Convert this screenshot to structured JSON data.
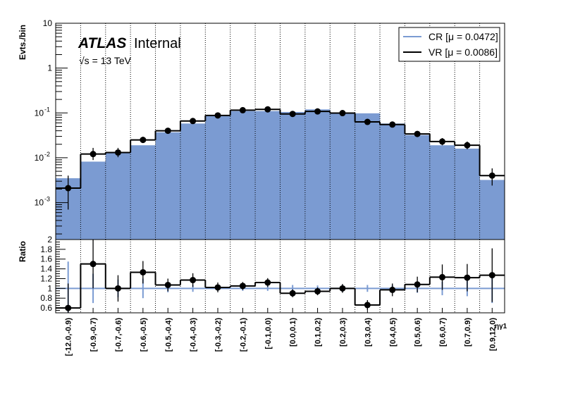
{
  "chart_data": [
    {
      "type": "bar",
      "panel": "main",
      "ylabel": "Evts./bin",
      "yscale": "log",
      "ylim": [
        0.00015,
        10
      ],
      "ytick_labels": [
        "10",
        "1",
        "10^-1",
        "10^-2",
        "10^-3"
      ],
      "categories": [
        "[-12.0,-0.9)",
        "[-0.9,-0.7)",
        "[-0.7,-0.6)",
        "[-0.6,-0.5)",
        "[-0.5,-0.4)",
        "[-0.4,-0.3)",
        "[-0.3,-0.2)",
        "[-0.2,-0.1)",
        "[-0.1,0.0)",
        "[0.0,0.1)",
        "[0.1,0.2)",
        "[0.2,0.3)",
        "[0.3,0.4)",
        "[0.4,0.5)",
        "[0.5,0.6)",
        "[0.6,0.7)",
        "[0.7,0.9)",
        "[0.9,12.0)"
      ],
      "xlabel": "ηγ1",
      "series": [
        {
          "name": "CR [μ = 0.0472]",
          "style": "filled-histogram",
          "color": "#7b9bd2",
          "values": [
            0.0035,
            0.0082,
            0.013,
            0.019,
            0.037,
            0.058,
            0.085,
            0.11,
            0.11,
            0.105,
            0.12,
            0.1,
            0.098,
            0.058,
            0.032,
            0.019,
            0.016,
            0.0032
          ]
        },
        {
          "name": "VR [μ = 0.0086]",
          "style": "line-histogram-with-points",
          "color": "#000000",
          "values": [
            0.0021,
            0.0121,
            0.0131,
            0.025,
            0.04,
            0.066,
            0.088,
            0.115,
            0.12,
            0.095,
            0.108,
            0.099,
            0.063,
            0.055,
            0.034,
            0.023,
            0.019,
            0.004
          ],
          "err_up": [
            0.0019,
            0.0045,
            0.0035,
            0.0045,
            0.005,
            0.007,
            0.008,
            0.01,
            0.01,
            0.009,
            0.01,
            0.009,
            0.007,
            0.0065,
            0.005,
            0.0045,
            0.004,
            0.0018
          ],
          "err_down": [
            0.0014,
            0.0032,
            0.0028,
            0.0035,
            0.0045,
            0.006,
            0.007,
            0.009,
            0.009,
            0.008,
            0.009,
            0.008,
            0.0065,
            0.006,
            0.0045,
            0.004,
            0.0035,
            0.0016
          ]
        }
      ],
      "legend_position": "top-right",
      "grid": "vertical-dotted"
    },
    {
      "type": "line",
      "panel": "ratio",
      "ylabel": "Ratio",
      "ylim": [
        0.5,
        2.0
      ],
      "ytick_labels": [
        "0.6",
        "0.8",
        "1",
        "1.2",
        "1.4",
        "1.6",
        "1.8",
        "2"
      ],
      "categories": [
        "[-12.0,-0.9)",
        "[-0.9,-0.7)",
        "[-0.7,-0.6)",
        "[-0.6,-0.5)",
        "[-0.5,-0.4)",
        "[-0.4,-0.3)",
        "[-0.3,-0.2)",
        "[-0.2,-0.1)",
        "[-0.1,0.0)",
        "[0.0,0.1)",
        "[0.1,0.2)",
        "[0.2,0.3)",
        "[0.3,0.4)",
        "[0.4,0.5)",
        "[0.5,0.6)",
        "[0.6,0.7)",
        "[0.7,0.9)",
        "[0.9,12.0)"
      ],
      "reference_line": 1.0,
      "values": [
        0.6,
        1.5,
        1.0,
        1.33,
        1.07,
        1.17,
        1.02,
        1.05,
        1.12,
        0.9,
        0.94,
        1.0,
        0.66,
        0.97,
        1.08,
        1.23,
        1.22,
        1.27
      ],
      "err": [
        0.5,
        0.5,
        0.27,
        0.23,
        0.13,
        0.14,
        0.1,
        0.08,
        0.09,
        0.08,
        0.08,
        0.09,
        0.1,
        0.13,
        0.16,
        0.26,
        0.28,
        0.55
      ],
      "cr_unc": [
        0.55,
        0.3,
        0.18,
        0.2,
        0.08,
        0.07,
        0.05,
        0.05,
        0.05,
        0.07,
        0.06,
        0.07,
        0.07,
        0.07,
        0.09,
        0.14,
        0.16,
        0.3
      ]
    }
  ],
  "labels": {
    "atlas": "ATLAS",
    "atlas_suffix": "Internal",
    "energy": "√s = 13 TeV",
    "legend": [
      "CR [μ = 0.0472]",
      "VR [μ = 0.0086]"
    ]
  }
}
